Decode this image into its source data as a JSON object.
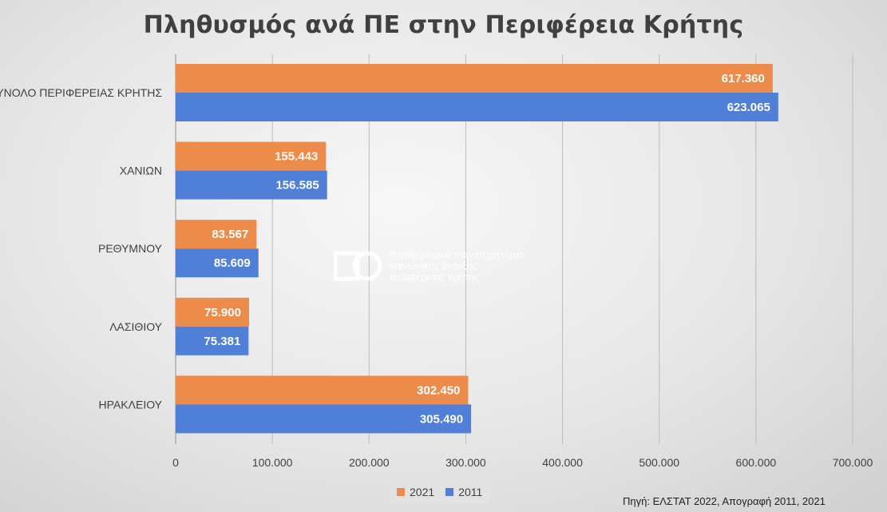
{
  "chart_data": {
    "type": "bar",
    "orientation": "horizontal",
    "title": "Πληθυσμός ανά ΠΕ στην Περιφέρεια Κρήτης",
    "categories": [
      "ΣΥΝΟΛΟ ΠΕΡΙΦΕΡΕΙΑΣ ΚΡΗΤΗΣ",
      "ΧΑΝΙΩΝ",
      "ΡΕΘΥΜΝΟΥ",
      "ΛΑΣΙΘΙΟΥ",
      "ΗΡΑΚΛΕΙΟΥ"
    ],
    "series": [
      {
        "name": "2021",
        "color": "#ED8B4A",
        "values": [
          617360,
          155443,
          83567,
          75900,
          302450
        ],
        "labels": [
          "617.360",
          "155.443",
          "83.567",
          "75.900",
          "302.450"
        ]
      },
      {
        "name": "2011",
        "color": "#4F7FD6",
        "values": [
          623065,
          156585,
          85609,
          75381,
          305490
        ],
        "labels": [
          "623.065",
          "156.585",
          "85.609",
          "75.381",
          "305.490"
        ]
      }
    ],
    "xlim": [
      0,
      700000
    ],
    "ticks": [
      0,
      100000,
      200000,
      300000,
      400000,
      500000,
      600000,
      700000
    ],
    "tick_labels": [
      "0",
      "100.000",
      "200.000",
      "300.000",
      "400.000",
      "500.000",
      "600.000",
      "700.000"
    ],
    "grid": true,
    "legend_position": "bottom"
  },
  "legend": {
    "items": [
      {
        "label": "2021",
        "color": "#ED8B4A"
      },
      {
        "label": "2011",
        "color": "#4F7FD6"
      }
    ]
  },
  "watermark": {
    "line1": "περιφερειακό παρατηρητήριο",
    "line2": "κοινωνικής ένταξης",
    "line3": "περιφέρειας κρήτης"
  },
  "source": "Πηγή: ΕΛΣΤΑΤ 2022, Απογραφή 2011, 2021"
}
